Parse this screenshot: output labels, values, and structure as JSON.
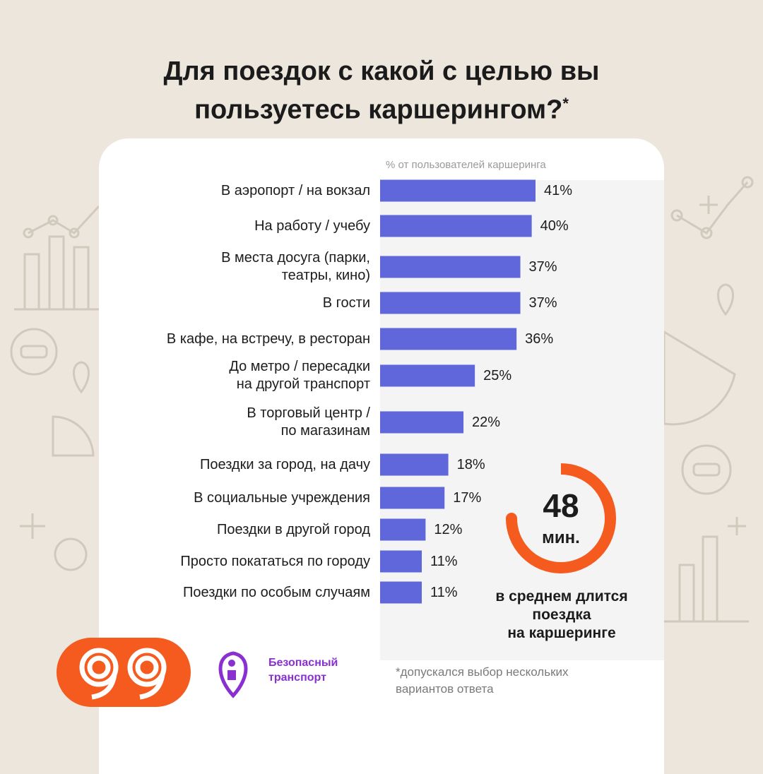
{
  "title": {
    "line1": "Для поездок с какой с целью вы",
    "line2": "пользуетесь каршерингом?",
    "asterisk": "*"
  },
  "colors": {
    "bar": "#6067db",
    "accent": "#f55a1e",
    "brand_purple": "#8a2fd0"
  },
  "chart_data": {
    "type": "bar",
    "orientation": "horizontal",
    "unit_label": "% от пользователей каршеринга",
    "categories": [
      [
        "В аэропорт / на вокзал"
      ],
      [
        "На работу / учебу"
      ],
      [
        "В места досуга (парки,",
        "театры, кино)"
      ],
      [
        "В гости"
      ],
      [
        "В кафе, на встречу, в ресторан"
      ],
      [
        "До метро / пересадки",
        "на другой транспорт"
      ],
      [
        "В торговый центр /",
        "по магазинам"
      ],
      [
        "Поездки за город, на дачу"
      ],
      [
        "В социальные учреждения"
      ],
      [
        "Поездки в другой город"
      ],
      [
        "Просто покататься по городу"
      ],
      [
        "Поездки по особым случаям"
      ]
    ],
    "values": [
      41,
      40,
      37,
      37,
      36,
      25,
      22,
      18,
      17,
      12,
      11,
      11
    ],
    "value_labels": [
      "41%",
      "40%",
      "37%",
      "37%",
      "36%",
      "25%",
      "22%",
      "18%",
      "17%",
      "12%",
      "11%",
      "11%"
    ],
    "xlim": [
      0,
      41
    ]
  },
  "highlight": {
    "number": "48",
    "unit": "мин.",
    "caption": [
      "в среднем длится",
      "поездка",
      "на каршеринге"
    ]
  },
  "footnote": [
    "*допускался выбор нескольких",
    "вариантов ответа"
  ],
  "logos": {
    "brand_icon": "logo-99-icon",
    "safe_icon": "shield-person-pin-icon",
    "safe_text": [
      "Безопасный",
      "транспорт"
    ]
  }
}
